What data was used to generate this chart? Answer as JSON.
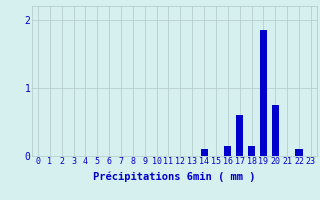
{
  "hours": [
    0,
    1,
    2,
    3,
    4,
    5,
    6,
    7,
    8,
    9,
    10,
    11,
    12,
    13,
    14,
    15,
    16,
    17,
    18,
    19,
    20,
    21,
    22,
    23
  ],
  "values": [
    0,
    0,
    0,
    0,
    0,
    0,
    0,
    0,
    0,
    0,
    0,
    0,
    0,
    0,
    0.1,
    0,
    0.15,
    0.6,
    0.15,
    1.85,
    0.75,
    0,
    0.1,
    0
  ],
  "bar_color": "#0000cc",
  "bg_color": "#d6efef",
  "grid_color": "#b0c8c8",
  "axis_color": "#0000cc",
  "xlabel": "Précipitations 6min ( mm )",
  "xlabel_fontsize": 7.5,
  "tick_fontsize": 6,
  "ylim": [
    0,
    2.2
  ],
  "yticks": [
    0,
    1,
    2
  ],
  "xlim": [
    -0.5,
    23.5
  ]
}
